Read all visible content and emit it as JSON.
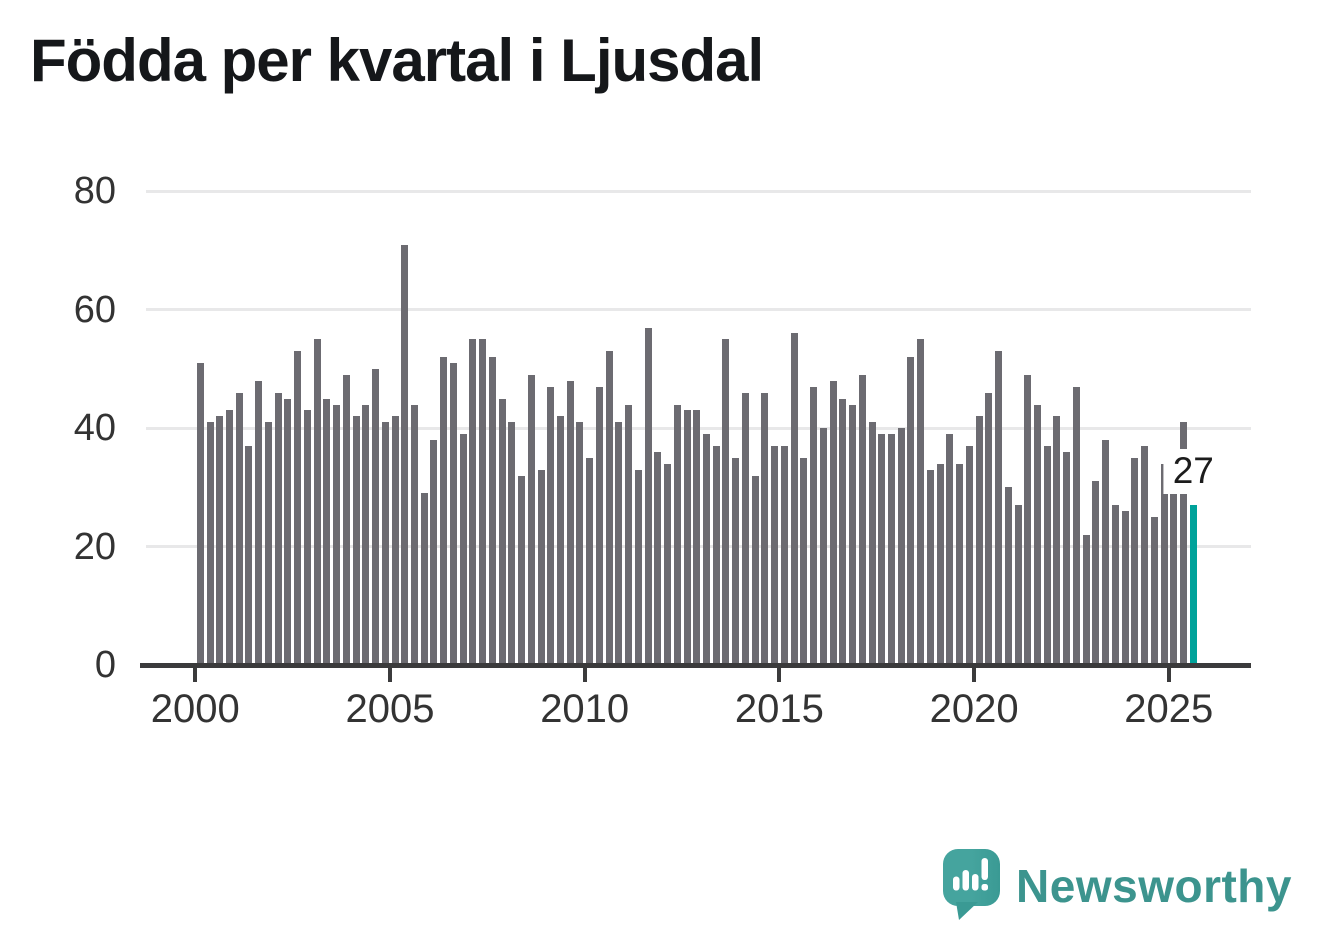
{
  "title": "Födda per kvartal i Ljusdal",
  "chart_data": {
    "type": "bar",
    "title": "Födda per kvartal i Ljusdal",
    "categories": [
      "2000Q1",
      "2000Q2",
      "2000Q3",
      "2000Q4",
      "2001Q1",
      "2001Q2",
      "2001Q3",
      "2001Q4",
      "2002Q1",
      "2002Q2",
      "2002Q3",
      "2002Q4",
      "2003Q1",
      "2003Q2",
      "2003Q3",
      "2003Q4",
      "2004Q1",
      "2004Q2",
      "2004Q3",
      "2004Q4",
      "2005Q1",
      "2005Q2",
      "2005Q3",
      "2005Q4",
      "2006Q1",
      "2006Q2",
      "2006Q3",
      "2006Q4",
      "2007Q1",
      "2007Q2",
      "2007Q3",
      "2007Q4",
      "2008Q1",
      "2008Q2",
      "2008Q3",
      "2008Q4",
      "2009Q1",
      "2009Q2",
      "2009Q3",
      "2009Q4",
      "2010Q1",
      "2010Q2",
      "2010Q3",
      "2010Q4",
      "2011Q1",
      "2011Q2",
      "2011Q3",
      "2011Q4",
      "2012Q1",
      "2012Q2",
      "2012Q3",
      "2012Q4",
      "2013Q1",
      "2013Q2",
      "2013Q3",
      "2013Q4",
      "2014Q1",
      "2014Q2",
      "2014Q3",
      "2014Q4",
      "2015Q1",
      "2015Q2",
      "2015Q3",
      "2015Q4",
      "2016Q1",
      "2016Q2",
      "2016Q3",
      "2016Q4",
      "2017Q1",
      "2017Q2",
      "2017Q3",
      "2017Q4",
      "2018Q1",
      "2018Q2",
      "2018Q3",
      "2018Q4",
      "2019Q1",
      "2019Q2",
      "2019Q3",
      "2019Q4",
      "2020Q1",
      "2020Q2",
      "2020Q3",
      "2020Q4",
      "2021Q1",
      "2021Q2",
      "2021Q3",
      "2021Q4",
      "2022Q1",
      "2022Q2",
      "2022Q3",
      "2022Q4",
      "2023Q1",
      "2023Q2",
      "2023Q3",
      "2023Q4",
      "2024Q1",
      "2024Q2",
      "2024Q3",
      "2024Q4",
      "2025Q1",
      "2025Q2",
      "2025Q3"
    ],
    "values": [
      51,
      41,
      42,
      43,
      46,
      37,
      48,
      41,
      46,
      45,
      53,
      43,
      55,
      45,
      44,
      49,
      42,
      44,
      50,
      41,
      42,
      71,
      44,
      29,
      38,
      52,
      51,
      39,
      55,
      55,
      52,
      45,
      41,
      32,
      49,
      33,
      47,
      42,
      48,
      41,
      35,
      47,
      53,
      41,
      44,
      33,
      57,
      36,
      34,
      44,
      43,
      43,
      39,
      37,
      55,
      35,
      46,
      32,
      46,
      37,
      37,
      56,
      35,
      47,
      40,
      48,
      45,
      44,
      49,
      41,
      39,
      39,
      40,
      52,
      55,
      33,
      34,
      39,
      34,
      37,
      42,
      46,
      53,
      30,
      27,
      49,
      44,
      37,
      42,
      36,
      47,
      22,
      31,
      38,
      27,
      26,
      35,
      37,
      25,
      34,
      29,
      41,
      27
    ],
    "xlabel": "",
    "ylabel": "",
    "ylim": [
      0,
      80
    ],
    "yticks": [
      0,
      20,
      40,
      60,
      80
    ],
    "xticks": [
      "2000",
      "2005",
      "2010",
      "2015",
      "2020",
      "2025"
    ],
    "grid": "horizontal",
    "legend": "none",
    "bar_color": "#6c6b71",
    "highlight_color": "#00a29a",
    "highlight_index": 102,
    "annotation": {
      "text": "27",
      "target": "last-bar"
    }
  },
  "branding": {
    "name": "Newsworthy",
    "icon": "newsworthy-speech-bubble-bar-chart-icon",
    "text_color": "#3c948e",
    "bubble_color": "#42a39d"
  },
  "colors": {
    "background": "#ffffff",
    "axis": "#3b3b3c",
    "gridline": "#e8e8e9",
    "axis_text": "#333333",
    "title_text": "#15171a",
    "annotation_text": "#1c1c1c"
  }
}
